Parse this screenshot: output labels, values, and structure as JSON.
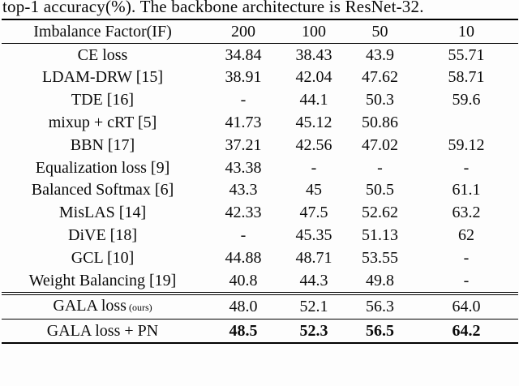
{
  "caption": "top-1 accuracy(%). The backbone architecture is ResNet-32.",
  "table": {
    "header": [
      "Imbalance Factor(IF)",
      "200",
      "100",
      "50",
      "10"
    ],
    "rows": [
      {
        "method": "CE loss",
        "values": [
          "34.84",
          "38.43",
          "43.9",
          "55.71"
        ]
      },
      {
        "method": "LDAM-DRW [15]",
        "values": [
          "38.91",
          "42.04",
          "47.62",
          "58.71"
        ]
      },
      {
        "method": "TDE [16]",
        "values": [
          "-",
          "44.1",
          "50.3",
          "59.6"
        ]
      },
      {
        "method": "mixup + cRT [5]",
        "values": [
          "41.73",
          "45.12",
          "50.86",
          ""
        ]
      },
      {
        "method": "BBN [17]",
        "values": [
          "37.21",
          "42.56",
          "47.02",
          "59.12"
        ]
      },
      {
        "method": "Equalization loss [9]",
        "values": [
          "43.38",
          "-",
          "-",
          "-"
        ]
      },
      {
        "method": "Balanced Softmax [6]",
        "values": [
          "43.3",
          "45",
          "50.5",
          "61.1"
        ]
      },
      {
        "method": "MisLAS [14]",
        "values": [
          "42.33",
          "47.5",
          "52.62",
          "63.2"
        ]
      },
      {
        "method": "DiVE [18]",
        "values": [
          "-",
          "45.35",
          "51.13",
          "62"
        ]
      },
      {
        "method": "GCL [10]",
        "values": [
          "44.88",
          "48.71",
          "53.55",
          "-"
        ]
      },
      {
        "method": "Weight Balancing [19]",
        "values": [
          "40.8",
          "44.3",
          "49.8",
          "-"
        ]
      }
    ],
    "ours_rows": [
      {
        "method": "GALA loss",
        "method_suffix": "(ours)",
        "values": [
          "48.0",
          "52.1",
          "56.3",
          "64.0"
        ],
        "bold_values": false
      },
      {
        "method": "GALA loss + PN",
        "method_suffix": "",
        "values": [
          "48.5",
          "52.3",
          "56.5",
          "64.2"
        ],
        "bold_values": true
      }
    ]
  }
}
